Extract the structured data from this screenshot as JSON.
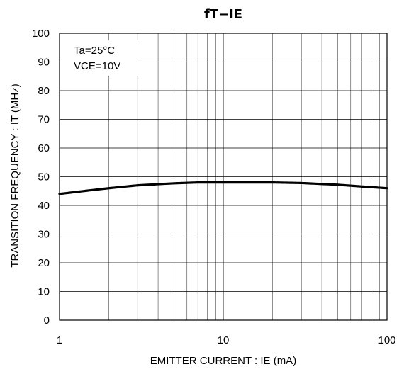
{
  "chart_data": {
    "type": "line",
    "title": "fT−IE",
    "xlabel": "EMITTER CURRENT : IE (mA)",
    "ylabel": "TRANSITION FREQUENCY : fT (MHz)",
    "x_scale": "log",
    "xlim": [
      1,
      100
    ],
    "ylim": [
      0,
      100
    ],
    "x_ticks": [
      "1",
      "10",
      "100"
    ],
    "y_ticks": [
      "0",
      "10",
      "20",
      "30",
      "40",
      "50",
      "60",
      "70",
      "80",
      "90",
      "100"
    ],
    "grid": true,
    "annotations": [
      "Ta=25°C",
      "VCE=10V"
    ],
    "series": [
      {
        "x": [
          1,
          1.5,
          2,
          3,
          5,
          7,
          10,
          20,
          30,
          50,
          70,
          100
        ],
        "y": [
          44,
          45.2,
          46,
          47,
          47.7,
          48,
          48,
          48,
          47.8,
          47.2,
          46.6,
          46
        ]
      }
    ]
  }
}
